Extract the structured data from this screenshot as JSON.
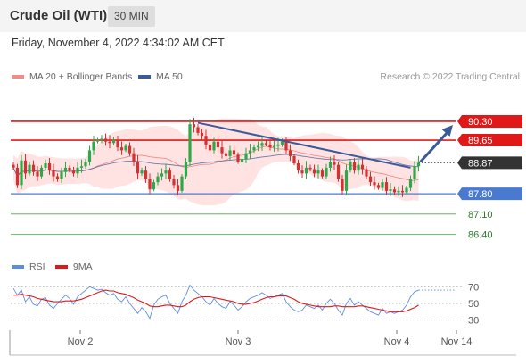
{
  "header": {
    "title": "Crude Oil (WTI)",
    "timeframe": "30 MIN"
  },
  "datetime": "Friday, November 4, 2022 4:34:02 AM CET",
  "legend": {
    "item1": {
      "label": "MA 20 + Bollinger Bands",
      "color": "#f08c8c"
    },
    "item2": {
      "label": "MA 50",
      "color": "#3a5a99"
    }
  },
  "credit": "Research © 2022 Trading Central",
  "colors": {
    "up": "#2ea84a",
    "down": "#d63030",
    "band_fill": "#ffd9d9",
    "trend": "#3a5a99",
    "resistance": "#e01818",
    "support": "#4a7ad0",
    "target": "#4aa84a",
    "current": "#333333"
  },
  "chart_data": [
    {
      "type": "line",
      "title": "",
      "ylim": [
        85.8,
        91.5
      ],
      "x_ticks": [
        "Nov 2",
        "Nov 3",
        "Nov 4",
        "Nov 14"
      ],
      "current_price": {
        "label": "88.87",
        "value": 88.87
      },
      "levels": [
        {
          "label": "90.30",
          "value": 90.3,
          "kind": "resistance"
        },
        {
          "label": "89.65",
          "value": 89.65,
          "kind": "resistance"
        },
        {
          "label": "87.80",
          "value": 87.8,
          "kind": "pivot"
        },
        {
          "label": "87.10",
          "value": 87.1,
          "kind": "target"
        },
        {
          "label": "86.40",
          "value": 86.4,
          "kind": "target"
        }
      ],
      "close_series": [
        88.7,
        88.1,
        88.95,
        88.5,
        88.8,
        88.55,
        88.4,
        88.7,
        88.85,
        88.6,
        88.4,
        88.3,
        88.55,
        88.7,
        88.6,
        88.5,
        88.7,
        88.75,
        88.9,
        89.3,
        89.6,
        89.65,
        89.7,
        89.6,
        89.55,
        89.65,
        89.4,
        89.3,
        89.45,
        89.2,
        88.9,
        88.5,
        88.6,
        88.3,
        87.95,
        88.2,
        88.4,
        88.5,
        88.6,
        88.3,
        88.1,
        87.9,
        88.4,
        88.9,
        90.2,
        90.1,
        89.9,
        89.8,
        89.5,
        89.3,
        89.6,
        89.4,
        89.2,
        89.1,
        89.3,
        89.15,
        88.9,
        89.0,
        89.2,
        89.3,
        89.4,
        89.45,
        89.55,
        89.5,
        89.4,
        89.45,
        89.5,
        89.6,
        89.3,
        89.1,
        88.85,
        88.6,
        88.5,
        88.7,
        88.65,
        88.5,
        88.6,
        88.4,
        88.7,
        88.9,
        88.8,
        88.3,
        87.9,
        88.6,
        88.9,
        88.6,
        88.8,
        88.65,
        88.4,
        88.2,
        88.1,
        88.0,
        88.2,
        87.9,
        87.95,
        87.85,
        87.9,
        87.85,
        88.0,
        88.3,
        88.75,
        88.87
      ],
      "forecast_arrow": {
        "from": 88.9,
        "to": 90.3
      }
    },
    {
      "type": "line",
      "title": "",
      "ylim": [
        20,
        80
      ],
      "y_ticks": [
        70,
        50,
        30
      ],
      "series": [
        {
          "name": "RSI",
          "color": "#5b8fde",
          "values": [
            68,
            60,
            66,
            52,
            58,
            49,
            47,
            55,
            57,
            48,
            44,
            50,
            55,
            60,
            56,
            49,
            58,
            62,
            66,
            70,
            68,
            66,
            67,
            63,
            60,
            62,
            55,
            52,
            58,
            50,
            44,
            38,
            45,
            40,
            32,
            48,
            55,
            58,
            60,
            50,
            44,
            38,
            52,
            60,
            72,
            66,
            62,
            58,
            52,
            48,
            56,
            50,
            46,
            44,
            52,
            48,
            42,
            46,
            52,
            56,
            58,
            60,
            63,
            60,
            56,
            58,
            60,
            62,
            52,
            46,
            42,
            40,
            42,
            48,
            46,
            44,
            48,
            42,
            50,
            55,
            50,
            42,
            36,
            50,
            56,
            48,
            52,
            48,
            44,
            40,
            38,
            36,
            44,
            38,
            40,
            38,
            40,
            42,
            48,
            58,
            64,
            66
          ]
        },
        {
          "name": "9MA",
          "color": "#e01818",
          "values": [
            60,
            60,
            61,
            60,
            59,
            58,
            56,
            55,
            54,
            53,
            52,
            52,
            52,
            53,
            53,
            53,
            54,
            55,
            57,
            59,
            61,
            63,
            65,
            66,
            65,
            65,
            63,
            62,
            61,
            59,
            57,
            54,
            52,
            50,
            47,
            46,
            46,
            47,
            48,
            48,
            47,
            46,
            46,
            48,
            52,
            55,
            57,
            58,
            58,
            58,
            57,
            56,
            55,
            54,
            53,
            52,
            50,
            49,
            49,
            50,
            51,
            53,
            55,
            57,
            58,
            58,
            59,
            59,
            59,
            57,
            55,
            52,
            50,
            49,
            48,
            47,
            46,
            46,
            46,
            46,
            47,
            47,
            46,
            46,
            46,
            46,
            47,
            47,
            46,
            45,
            44,
            43,
            42,
            41,
            40,
            40,
            40,
            40,
            41,
            43,
            45,
            48
          ]
        }
      ]
    }
  ],
  "rsi_legend": {
    "item1": "RSI",
    "item2": "9MA"
  }
}
